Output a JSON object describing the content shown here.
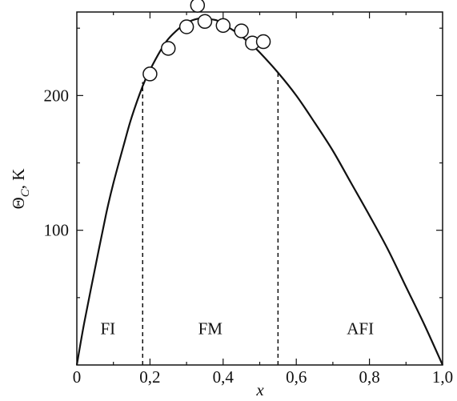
{
  "chart_data": {
    "type": "scatter",
    "title": "",
    "xlabel": "x",
    "ylabel": "Θ",
    "ylabel_subscript": "C",
    "ylabel_unit": ", K",
    "xlim": [
      0,
      1.0
    ],
    "ylim": [
      0,
      262
    ],
    "grid": false,
    "legend": "none",
    "x_ticks": [
      {
        "value": 0.0,
        "label": "0"
      },
      {
        "value": 0.2,
        "label": "0,2"
      },
      {
        "value": 0.4,
        "label": "0,4"
      },
      {
        "value": 0.6,
        "label": "0,6"
      },
      {
        "value": 0.8,
        "label": "0,8"
      },
      {
        "value": 1.0,
        "label": "1,0"
      }
    ],
    "x_minor_ticks": [
      0.1,
      0.3,
      0.5,
      0.7,
      0.9
    ],
    "y_ticks": [
      {
        "value": 100,
        "label": "100"
      },
      {
        "value": 200,
        "label": "200"
      }
    ],
    "y_minor_ticks": [
      50,
      150,
      250
    ],
    "series": [
      {
        "kind": "points",
        "marker": "open-circle",
        "x": [
          0.2,
          0.25,
          0.3,
          0.33,
          0.35,
          0.4,
          0.45,
          0.48,
          0.51
        ],
        "y": [
          216,
          235,
          251,
          267,
          255,
          252,
          248,
          239,
          240
        ]
      },
      {
        "kind": "curve",
        "x": [
          0.0,
          0.02,
          0.05,
          0.08,
          0.1,
          0.13,
          0.15,
          0.18,
          0.2,
          0.23,
          0.25,
          0.28,
          0.3,
          0.33,
          0.35,
          0.38,
          0.4,
          0.43,
          0.45,
          0.48,
          0.5,
          0.55,
          0.6,
          0.65,
          0.7,
          0.75,
          0.8,
          0.85,
          0.9,
          0.95,
          1.0
        ],
        "y": [
          0,
          31,
          72,
          112,
          135,
          165,
          184,
          207,
          219,
          234,
          242,
          250,
          254,
          257,
          257,
          256,
          253,
          248,
          244,
          237,
          232,
          217,
          200,
          180,
          159,
          135,
          111,
          86,
          58,
          30,
          0
        ]
      }
    ],
    "boundaries": [
      {
        "x": 0.18,
        "y_top": 210,
        "style": "dashed"
      },
      {
        "x": 0.55,
        "y_top": 218,
        "style": "dashed"
      }
    ],
    "region_labels": [
      {
        "text": "FI",
        "x": 0.085,
        "y": 27
      },
      {
        "text": "FM",
        "x": 0.365,
        "y": 27
      },
      {
        "text": "AFI",
        "x": 0.775,
        "y": 27
      }
    ],
    "colors": {
      "line": "#111111",
      "marker_fill": "#ffffff"
    }
  }
}
